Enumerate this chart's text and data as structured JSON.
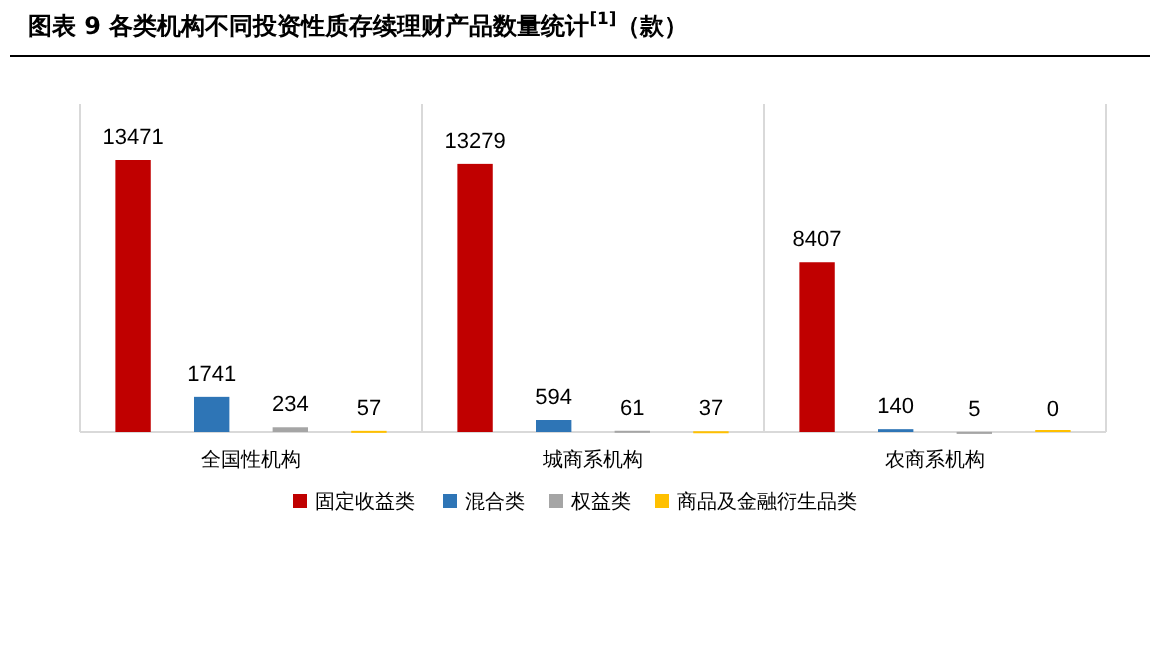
{
  "chart_data": {
    "type": "bar",
    "title": "图表 9 各类机构不同投资性质存续理财产品数量统计$^{[1]}$（款）",
    "categories": [
      "全国性机构",
      "城商系机构",
      "农商系机构"
    ],
    "series": [
      {
        "name": "固定收益类",
        "color": "#c00000",
        "values": [
          13471,
          13279,
          8407
        ]
      },
      {
        "name": "混合类",
        "color": "#2e75b6",
        "values": [
          1741,
          594,
          140
        ]
      },
      {
        "name": "权益类",
        "color": "#a5a5a5",
        "values": [
          234,
          61,
          5
        ]
      },
      {
        "name": "商品及金融衍生品类",
        "color": "#ffc000",
        "values": [
          57,
          37,
          0
        ]
      }
    ],
    "data_labels": true,
    "legend": "bottom",
    "grid": "x"
  }
}
